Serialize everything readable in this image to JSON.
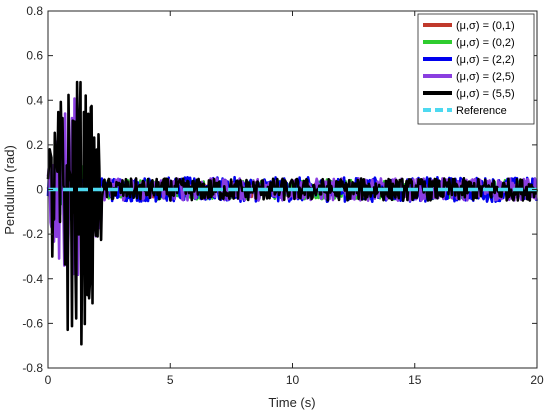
{
  "chart_data": {
    "type": "line",
    "title": "",
    "xlabel": "Time (s)",
    "ylabel": "Pendulum (rad)",
    "xlim": [
      0,
      20
    ],
    "ylim": [
      -0.8,
      0.8
    ],
    "x_ticks": [
      0,
      5,
      10,
      15,
      20
    ],
    "y_ticks": [
      -0.8,
      -0.6,
      -0.4,
      -0.2,
      0,
      0.2,
      0.4,
      0.6,
      0.8
    ],
    "x_tick_labels": [
      "0",
      "5",
      "10",
      "15",
      "20"
    ],
    "y_tick_labels": [
      "-0.8",
      "-0.6",
      "-0.4",
      "-0.2",
      "0",
      "0.2",
      "0.4",
      "0.6",
      "0.8"
    ],
    "grid": false,
    "legend_position": "top-right",
    "series": [
      {
        "name": "(μ,σ) = (0,1)",
        "color": "#c0392b",
        "transient_peak": 0.08,
        "steady_amplitude": 0.035
      },
      {
        "name": "(μ,σ) = (0,2)",
        "color": "#2ecc2e",
        "transient_peak": 0.12,
        "steady_amplitude": 0.045
      },
      {
        "name": "(μ,σ) = (2,2)",
        "color": "#0000ee",
        "transient_peak": 0.15,
        "steady_amplitude": 0.055
      },
      {
        "name": "(μ,σ) = (2,5)",
        "color": "#8a3ee0",
        "transient_peak": 0.42,
        "steady_amplitude": 0.05
      },
      {
        "name": "(μ,σ) = (5,5)",
        "color": "#000000",
        "transient_peak": 0.52,
        "transient_trough": -0.73,
        "steady_amplitude": 0.05
      },
      {
        "name": "Reference",
        "color": "#4dd9f0",
        "dashed": true,
        "constant": 0
      }
    ],
    "transient_end": 2.2
  }
}
